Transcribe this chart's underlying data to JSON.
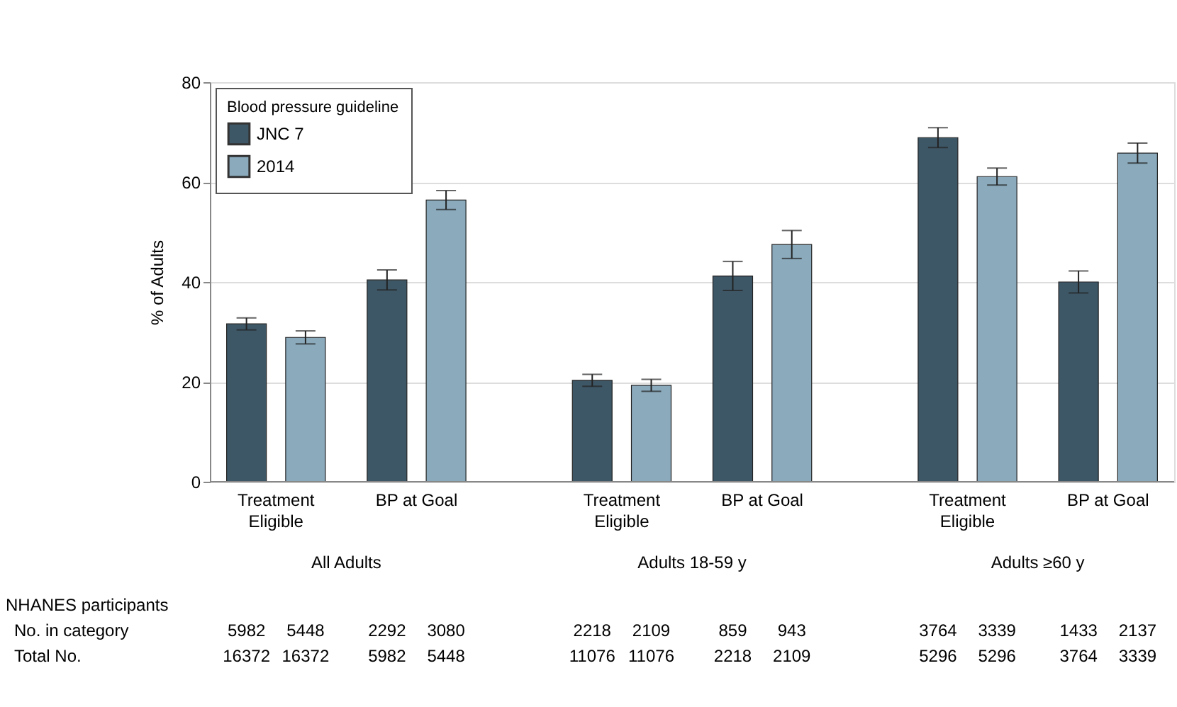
{
  "chart_data": {
    "type": "bar",
    "ylabel": "% of Adults",
    "legend_title": "Blood pressure guideline",
    "legend": "top left",
    "grid": "y",
    "categories": [
      "Treatment Eligible",
      "BP at Goal",
      "Treatment Eligible",
      "BP at Goal",
      "Treatment Eligible",
      "BP at Goal"
    ],
    "ylim": [
      0,
      80
    ],
    "yticks": [
      0,
      20,
      40,
      60,
      80
    ],
    "series": [
      {
        "name": "JNC 7",
        "color": "#3e5767",
        "values": [
          31.6,
          40.4,
          20.3,
          41.2,
          68.9,
          40.0
        ],
        "errors": [
          1.2,
          2.0,
          1.2,
          2.9,
          2.0,
          2.2
        ]
      },
      {
        "name": "2014",
        "color": "#8babbd",
        "values": [
          28.9,
          56.4,
          19.3,
          47.5,
          61.1,
          65.8
        ],
        "errors": [
          1.3,
          1.9,
          1.2,
          2.8,
          1.7,
          2.0
        ]
      }
    ],
    "annotations": [
      "All Adults",
      "Adults 18-59 y",
      "Adults ≥60 y",
      "NHANES participants",
      "No. in category",
      "Total No.",
      "5982",
      "5448",
      "2292",
      "3080",
      "2218",
      "2109",
      "859",
      "943",
      "3764",
      "3339",
      "1433",
      "2137",
      "16372",
      "16372",
      "5982",
      "5448",
      "11076",
      "11076",
      "2218",
      "2109",
      "5296",
      "5296",
      "3764",
      "3339"
    ]
  }
}
